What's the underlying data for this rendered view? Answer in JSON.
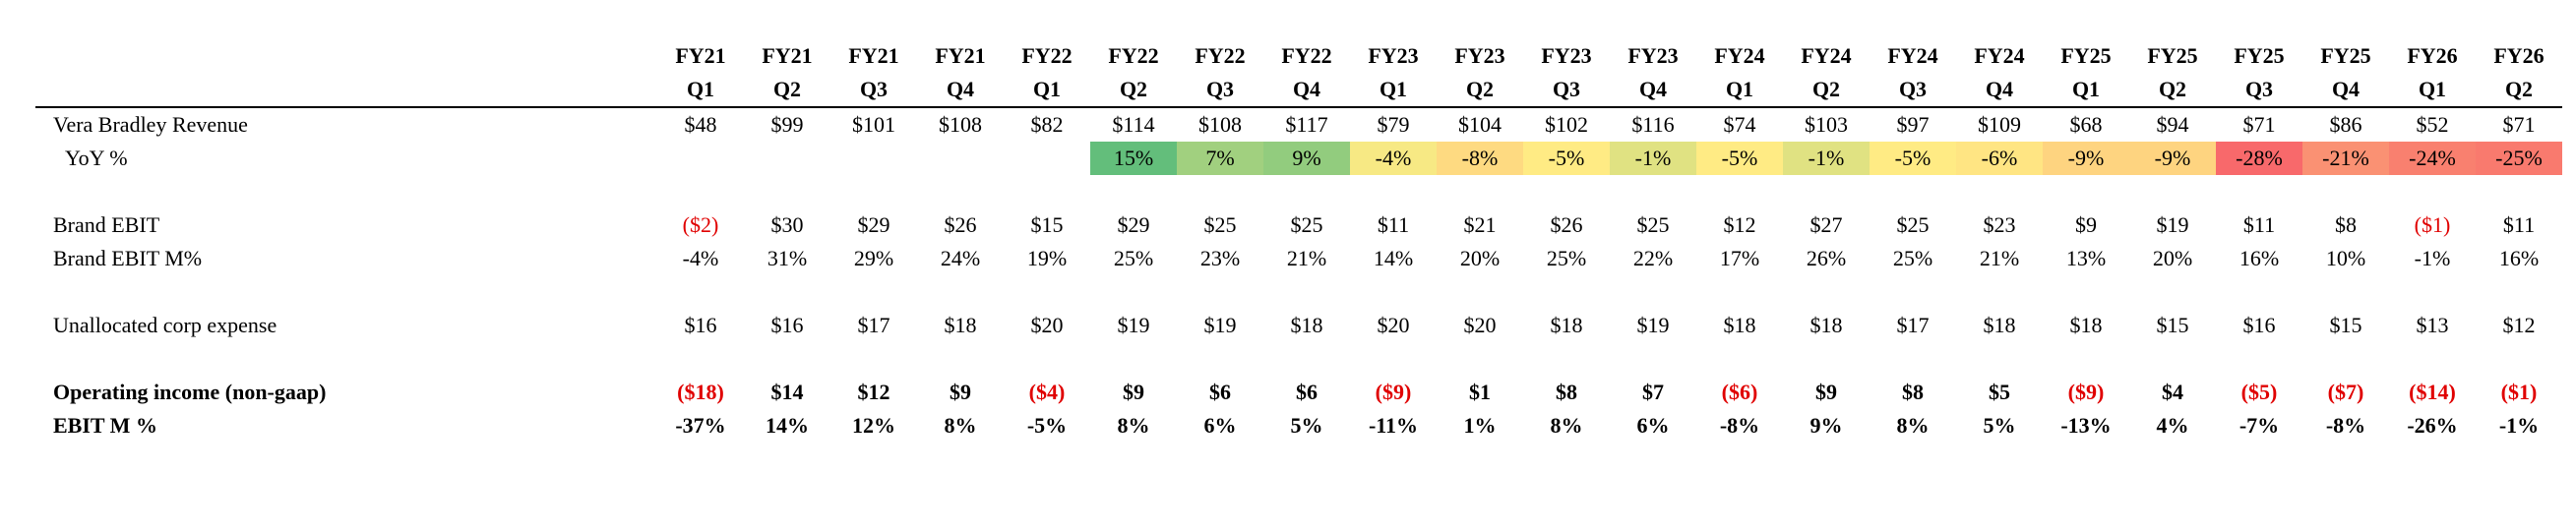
{
  "quarters": [
    {
      "fy": "FY21",
      "q": "Q1"
    },
    {
      "fy": "FY21",
      "q": "Q2"
    },
    {
      "fy": "FY21",
      "q": "Q3"
    },
    {
      "fy": "FY21",
      "q": "Q4"
    },
    {
      "fy": "FY22",
      "q": "Q1"
    },
    {
      "fy": "FY22",
      "q": "Q2"
    },
    {
      "fy": "FY22",
      "q": "Q3"
    },
    {
      "fy": "FY22",
      "q": "Q4"
    },
    {
      "fy": "FY23",
      "q": "Q1"
    },
    {
      "fy": "FY23",
      "q": "Q2"
    },
    {
      "fy": "FY23",
      "q": "Q3"
    },
    {
      "fy": "FY23",
      "q": "Q4"
    },
    {
      "fy": "FY24",
      "q": "Q1"
    },
    {
      "fy": "FY24",
      "q": "Q2"
    },
    {
      "fy": "FY24",
      "q": "Q3"
    },
    {
      "fy": "FY24",
      "q": "Q4"
    },
    {
      "fy": "FY25",
      "q": "Q1"
    },
    {
      "fy": "FY25",
      "q": "Q2"
    },
    {
      "fy": "FY25",
      "q": "Q3"
    },
    {
      "fy": "FY25",
      "q": "Q4"
    },
    {
      "fy": "FY26",
      "q": "Q1"
    },
    {
      "fy": "FY26",
      "q": "Q2"
    }
  ],
  "rows": [
    {
      "label": "Vera Bradley Revenue",
      "bold": false,
      "indent": false,
      "heatmap": false,
      "values": [
        "$48",
        "$99",
        "$101",
        "$108",
        "$82",
        "$114",
        "$108",
        "$117",
        "$79",
        "$104",
        "$102",
        "$116",
        "$74",
        "$103",
        "$97",
        "$109",
        "$68",
        "$94",
        "$71",
        "$86",
        "$52",
        "$71"
      ]
    },
    {
      "label": "YoY %",
      "bold": false,
      "indent": true,
      "heatmap": true,
      "values": [
        "",
        "",
        "",
        "",
        "",
        "15%",
        "7%",
        "9%",
        "-4%",
        "-8%",
        "-5%",
        "-1%",
        "-5%",
        "-1%",
        "-5%",
        "-6%",
        "-9%",
        "-9%",
        "-28%",
        "-21%",
        "-24%",
        "-25%"
      ]
    },
    {
      "spacer": true
    },
    {
      "label": "Brand EBIT",
      "bold": false,
      "indent": false,
      "heatmap": false,
      "values": [
        "($2)",
        "$30",
        "$29",
        "$26",
        "$15",
        "$29",
        "$25",
        "$25",
        "$11",
        "$21",
        "$26",
        "$25",
        "$12",
        "$27",
        "$25",
        "$23",
        "$9",
        "$19",
        "$11",
        "$8",
        "($1)",
        "$11"
      ]
    },
    {
      "label": "Brand EBIT M%",
      "bold": false,
      "indent": false,
      "heatmap": false,
      "values": [
        "-4%",
        "31%",
        "29%",
        "24%",
        "19%",
        "25%",
        "23%",
        "21%",
        "14%",
        "20%",
        "25%",
        "22%",
        "17%",
        "26%",
        "25%",
        "21%",
        "13%",
        "20%",
        "16%",
        "10%",
        "-1%",
        "16%"
      ]
    },
    {
      "spacer": true
    },
    {
      "label": "Unallocated corp expense",
      "bold": false,
      "indent": false,
      "heatmap": false,
      "values": [
        "$16",
        "$16",
        "$17",
        "$18",
        "$20",
        "$19",
        "$19",
        "$18",
        "$20",
        "$20",
        "$18",
        "$19",
        "$18",
        "$18",
        "$17",
        "$18",
        "$18",
        "$15",
        "$16",
        "$15",
        "$13",
        "$12"
      ]
    },
    {
      "spacer": true
    },
    {
      "label": "Operating income (non-gaap)",
      "bold": true,
      "indent": false,
      "heatmap": false,
      "values": [
        "($18)",
        "$14",
        "$12",
        "$9",
        "($4)",
        "$9",
        "$6",
        "$6",
        "($9)",
        "$1",
        "$8",
        "$7",
        "($6)",
        "$9",
        "$8",
        "$5",
        "($9)",
        "$4",
        "($5)",
        "($7)",
        "($14)",
        "($1)"
      ]
    },
    {
      "label": "EBIT M %",
      "bold": true,
      "indent": false,
      "heatmap": false,
      "values": [
        "-37%",
        "14%",
        "12%",
        "8%",
        "-5%",
        "8%",
        "6%",
        "5%",
        "-11%",
        "1%",
        "8%",
        "6%",
        "-8%",
        "9%",
        "8%",
        "5%",
        "-13%",
        "4%",
        "-7%",
        "-8%",
        "-26%",
        "-1%"
      ]
    }
  ],
  "colors": {
    "negative_text": "#e00000",
    "heat_green": "#63be7b",
    "heat_yellow": "#ffeb84",
    "heat_red": "#f8696b"
  }
}
